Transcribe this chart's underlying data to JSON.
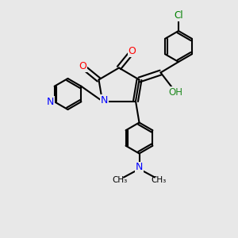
{
  "background_color": "#e8e8e8",
  "bond_color": "#000000",
  "atom_colors": {
    "N": "#0000ff",
    "O": "#ff0000",
    "Cl": "#008000",
    "OH": "#228b22"
  },
  "figsize": [
    3.0,
    3.0
  ],
  "dpi": 100
}
